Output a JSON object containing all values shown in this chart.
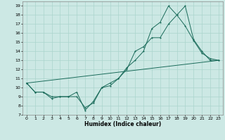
{
  "xlabel": "Humidex (Indice chaleur)",
  "bg_color": "#cce8e4",
  "grid_color": "#aad4cc",
  "line_color": "#1a6b5a",
  "xlim": [
    -0.5,
    23.5
  ],
  "ylim": [
    7,
    19.5
  ],
  "yticks": [
    7,
    8,
    9,
    10,
    11,
    12,
    13,
    14,
    15,
    16,
    17,
    18,
    19
  ],
  "xticks": [
    0,
    1,
    2,
    3,
    4,
    5,
    6,
    7,
    8,
    9,
    10,
    11,
    12,
    13,
    14,
    15,
    16,
    17,
    18,
    19,
    20,
    21,
    22,
    23
  ],
  "line1_x": [
    0,
    1,
    2,
    3,
    4,
    5,
    6,
    7,
    8,
    9,
    10,
    11,
    12,
    13,
    14,
    15,
    16,
    17,
    18,
    19,
    20,
    21,
    22,
    23
  ],
  "line1_y": [
    10.5,
    9.5,
    9.5,
    9.0,
    9.0,
    9.0,
    9.5,
    7.5,
    8.5,
    10.0,
    10.5,
    11.0,
    12.0,
    14.0,
    14.5,
    15.5,
    15.5,
    17.0,
    18.0,
    19.0,
    15.3,
    14.0,
    13.0,
    13.0
  ],
  "line2_x": [
    0,
    1,
    2,
    3,
    4,
    5,
    6,
    7,
    8,
    9,
    10,
    11,
    12,
    13,
    14,
    15,
    16,
    17,
    18,
    19,
    20,
    21,
    22,
    23
  ],
  "line2_y": [
    10.5,
    9.5,
    9.5,
    8.8,
    9.0,
    9.0,
    9.0,
    7.8,
    8.3,
    10.0,
    10.2,
    11.0,
    12.2,
    13.0,
    14.0,
    16.5,
    17.2,
    19.0,
    18.0,
    16.8,
    15.2,
    13.8,
    13.2,
    13.0
  ],
  "line3_x": [
    0,
    23
  ],
  "line3_y": [
    10.5,
    13.0
  ]
}
